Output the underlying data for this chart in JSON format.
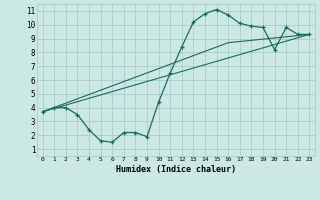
{
  "xlabel": "Humidex (Indice chaleur)",
  "bg_color": "#cce8e4",
  "grid_color": "#aacccc",
  "line_color": "#1a6b5a",
  "xlim": [
    -0.5,
    23.5
  ],
  "ylim": [
    0.5,
    11.5
  ],
  "xticks": [
    0,
    1,
    2,
    3,
    4,
    5,
    6,
    7,
    8,
    9,
    10,
    11,
    12,
    13,
    14,
    15,
    16,
    17,
    18,
    19,
    20,
    21,
    22,
    23
  ],
  "yticks": [
    1,
    2,
    3,
    4,
    5,
    6,
    7,
    8,
    9,
    10,
    11
  ],
  "line1_x": [
    0,
    1,
    2,
    3,
    4,
    5,
    6,
    7,
    8,
    9,
    10,
    11,
    12,
    13,
    14,
    15,
    16,
    17,
    18,
    19,
    20,
    21,
    22,
    23
  ],
  "line1_y": [
    3.7,
    4.0,
    4.0,
    3.5,
    2.4,
    1.6,
    1.5,
    2.2,
    2.2,
    1.9,
    4.4,
    6.5,
    8.4,
    10.2,
    10.8,
    11.1,
    10.7,
    10.1,
    9.9,
    9.8,
    8.2,
    9.8,
    9.3,
    9.3
  ],
  "line2_x": [
    0,
    23
  ],
  "line2_y": [
    3.7,
    9.3
  ],
  "line3_x": [
    0,
    16,
    23
  ],
  "line3_y": [
    3.7,
    8.7,
    9.3
  ]
}
